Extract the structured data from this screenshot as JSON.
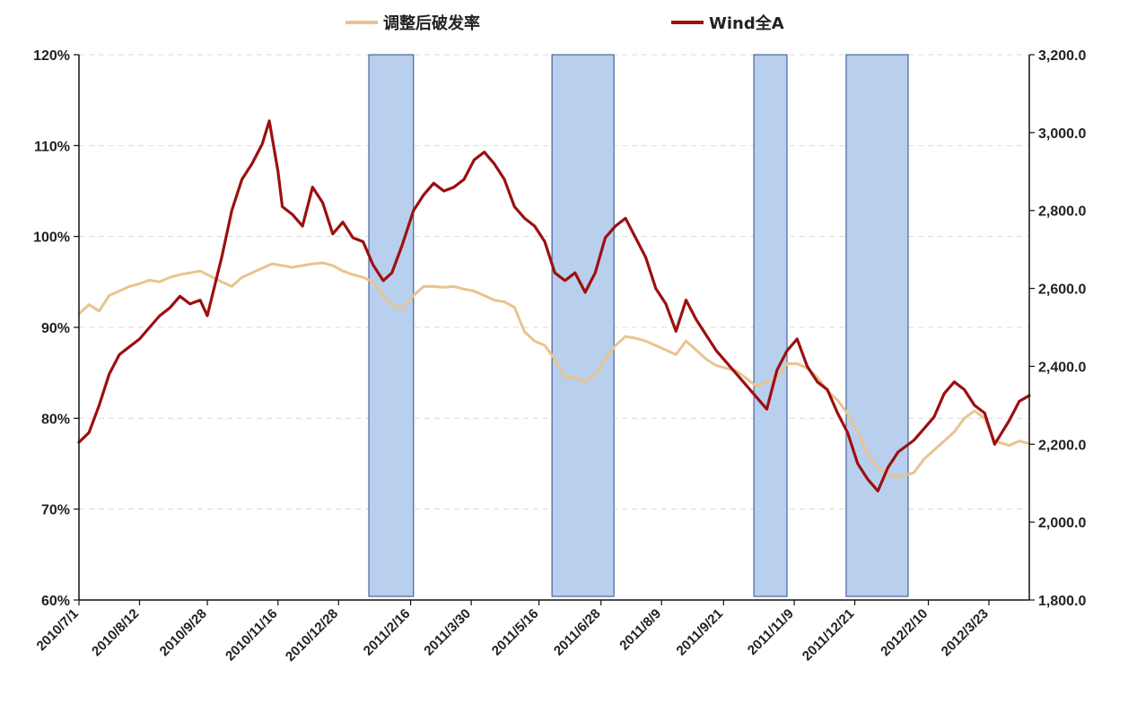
{
  "chart_data": {
    "type": "line",
    "title": "",
    "xlabel": "",
    "ylabel_left": "",
    "ylabel_right": "",
    "grid": true,
    "legend_position": "top-center",
    "x_tick_labels": [
      "2010/7/1",
      "2010/8/12",
      "2010/9/28",
      "2010/11/16",
      "2010/12/28",
      "2011/2/16",
      "2011/3/30",
      "2011/5/16",
      "2011/6/28",
      "2011/8/9",
      "2011/9/21",
      "2011/11/9",
      "2011/12/21",
      "2012/2/10",
      "2012/3/23"
    ],
    "x_domain": [
      "2010/7/1",
      "2012/4/20"
    ],
    "y_left": {
      "range": [
        0.6,
        1.2
      ],
      "ticks": [
        "60%",
        "70%",
        "80%",
        "90%",
        "100%",
        "110%",
        "120%"
      ]
    },
    "y_right": {
      "range": [
        1800,
        3200
      ],
      "ticks": [
        "1,800.0",
        "2,000.0",
        "2,200.0",
        "2,400.0",
        "2,600.0",
        "2,800.0",
        "3,000.0",
        "3,200.0"
      ]
    },
    "shaded_periods": [
      {
        "start": "2011/1/18",
        "end": "2011/2/18"
      },
      {
        "start": "2011/5/25",
        "end": "2011/7/7"
      },
      {
        "start": "2011/10/12",
        "end": "2011/11/4"
      },
      {
        "start": "2011/12/15",
        "end": "2012/1/27"
      }
    ],
    "colors": {
      "break_rate": "#E8C48E",
      "wind_a": "#9C1010",
      "shade_fill": "#B8D0EE",
      "shade_stroke": "#2E4A8A"
    },
    "series": [
      {
        "name": "调整后破发率",
        "axis": "left",
        "points": [
          [
            "2010/7/1",
            0.915
          ],
          [
            "2010/7/8",
            0.925
          ],
          [
            "2010/7/15",
            0.918
          ],
          [
            "2010/7/22",
            0.935
          ],
          [
            "2010/7/29",
            0.94
          ],
          [
            "2010/8/5",
            0.945
          ],
          [
            "2010/8/12",
            0.948
          ],
          [
            "2010/8/19",
            0.952
          ],
          [
            "2010/8/26",
            0.95
          ],
          [
            "2010/9/2",
            0.955
          ],
          [
            "2010/9/9",
            0.958
          ],
          [
            "2010/9/16",
            0.96
          ],
          [
            "2010/9/23",
            0.962
          ],
          [
            "2010/9/28",
            0.958
          ],
          [
            "2010/10/8",
            0.95
          ],
          [
            "2010/10/15",
            0.945
          ],
          [
            "2010/10/22",
            0.955
          ],
          [
            "2010/10/29",
            0.96
          ],
          [
            "2010/11/5",
            0.965
          ],
          [
            "2010/11/12",
            0.97
          ],
          [
            "2010/11/19",
            0.968
          ],
          [
            "2010/11/26",
            0.966
          ],
          [
            "2010/12/3",
            0.968
          ],
          [
            "2010/12/10",
            0.97
          ],
          [
            "2010/12/17",
            0.971
          ],
          [
            "2010/12/24",
            0.968
          ],
          [
            "2010/12/31",
            0.962
          ],
          [
            "2011/1/7",
            0.958
          ],
          [
            "2011/1/14",
            0.955
          ],
          [
            "2011/1/21",
            0.95
          ],
          [
            "2011/1/28",
            0.935
          ],
          [
            "2011/2/3",
            0.925
          ],
          [
            "2011/2/10",
            0.92
          ],
          [
            "2011/2/18",
            0.935
          ],
          [
            "2011/2/25",
            0.945
          ],
          [
            "2011/3/4",
            0.945
          ],
          [
            "2011/3/11",
            0.944
          ],
          [
            "2011/3/18",
            0.945
          ],
          [
            "2011/3/25",
            0.942
          ],
          [
            "2011/4/1",
            0.94
          ],
          [
            "2011/4/8",
            0.935
          ],
          [
            "2011/4/15",
            0.93
          ],
          [
            "2011/4/22",
            0.928
          ],
          [
            "2011/4/29",
            0.922
          ],
          [
            "2011/5/6",
            0.895
          ],
          [
            "2011/5/13",
            0.885
          ],
          [
            "2011/5/20",
            0.88
          ],
          [
            "2011/5/27",
            0.865
          ],
          [
            "2011/6/3",
            0.845
          ],
          [
            "2011/6/10",
            0.845
          ],
          [
            "2011/6/17",
            0.84
          ],
          [
            "2011/6/24",
            0.848
          ],
          [
            "2011/7/1",
            0.865
          ],
          [
            "2011/7/8",
            0.88
          ],
          [
            "2011/7/15",
            0.89
          ],
          [
            "2011/7/22",
            0.888
          ],
          [
            "2011/7/29",
            0.885
          ],
          [
            "2011/8/5",
            0.88
          ],
          [
            "2011/8/12",
            0.875
          ],
          [
            "2011/8/19",
            0.87
          ],
          [
            "2011/8/26",
            0.885
          ],
          [
            "2011/9/2",
            0.875
          ],
          [
            "2011/9/9",
            0.865
          ],
          [
            "2011/9/16",
            0.858
          ],
          [
            "2011/9/23",
            0.855
          ],
          [
            "2011/9/30",
            0.852
          ],
          [
            "2011/10/14",
            0.835
          ],
          [
            "2011/10/21",
            0.84
          ],
          [
            "2011/10/28",
            0.845
          ],
          [
            "2011/11/4",
            0.86
          ],
          [
            "2011/11/11",
            0.86
          ],
          [
            "2011/11/18",
            0.855
          ],
          [
            "2011/11/25",
            0.845
          ],
          [
            "2011/12/2",
            0.83
          ],
          [
            "2011/12/9",
            0.82
          ],
          [
            "2011/12/16",
            0.805
          ],
          [
            "2011/12/23",
            0.785
          ],
          [
            "2011/12/30",
            0.76
          ],
          [
            "2012/1/6",
            0.745
          ],
          [
            "2012/1/13",
            0.738
          ],
          [
            "2012/1/20",
            0.735
          ],
          [
            "2012/1/31",
            0.74
          ],
          [
            "2012/2/7",
            0.755
          ],
          [
            "2012/2/14",
            0.765
          ],
          [
            "2012/2/21",
            0.775
          ],
          [
            "2012/2/28",
            0.785
          ],
          [
            "2012/3/6",
            0.8
          ],
          [
            "2012/3/13",
            0.808
          ],
          [
            "2012/3/20",
            0.8
          ],
          [
            "2012/3/27",
            0.775
          ],
          [
            "2012/4/6",
            0.77
          ],
          [
            "2012/4/13",
            0.775
          ],
          [
            "2012/4/20",
            0.772
          ]
        ]
      },
      {
        "name": "Wind全A",
        "axis": "right",
        "points": [
          [
            "2010/7/1",
            2205
          ],
          [
            "2010/7/8",
            2230
          ],
          [
            "2010/7/15",
            2300
          ],
          [
            "2010/7/22",
            2380
          ],
          [
            "2010/7/29",
            2430
          ],
          [
            "2010/8/5",
            2450
          ],
          [
            "2010/8/12",
            2470
          ],
          [
            "2010/8/19",
            2500
          ],
          [
            "2010/8/26",
            2530
          ],
          [
            "2010/9/2",
            2550
          ],
          [
            "2010/9/9",
            2580
          ],
          [
            "2010/9/16",
            2560
          ],
          [
            "2010/9/23",
            2570
          ],
          [
            "2010/9/28",
            2530
          ],
          [
            "2010/10/8",
            2680
          ],
          [
            "2010/10/15",
            2800
          ],
          [
            "2010/10/22",
            2880
          ],
          [
            "2010/10/29",
            2920
          ],
          [
            "2010/11/5",
            2970
          ],
          [
            "2010/11/10",
            3030
          ],
          [
            "2010/11/16",
            2900
          ],
          [
            "2010/11/19",
            2810
          ],
          [
            "2010/11/26",
            2790
          ],
          [
            "2010/12/3",
            2760
          ],
          [
            "2010/12/10",
            2860
          ],
          [
            "2010/12/17",
            2820
          ],
          [
            "2010/12/24",
            2740
          ],
          [
            "2010/12/31",
            2770
          ],
          [
            "2011/1/7",
            2730
          ],
          [
            "2011/1/14",
            2720
          ],
          [
            "2011/1/21",
            2660
          ],
          [
            "2011/1/28",
            2620
          ],
          [
            "2011/2/3",
            2640
          ],
          [
            "2011/2/10",
            2710
          ],
          [
            "2011/2/18",
            2800
          ],
          [
            "2011/2/25",
            2840
          ],
          [
            "2011/3/4",
            2870
          ],
          [
            "2011/3/11",
            2850
          ],
          [
            "2011/3/18",
            2860
          ],
          [
            "2011/3/25",
            2880
          ],
          [
            "2011/4/1",
            2930
          ],
          [
            "2011/4/8",
            2950
          ],
          [
            "2011/4/15",
            2920
          ],
          [
            "2011/4/22",
            2880
          ],
          [
            "2011/4/29",
            2810
          ],
          [
            "2011/5/6",
            2780
          ],
          [
            "2011/5/13",
            2760
          ],
          [
            "2011/5/20",
            2720
          ],
          [
            "2011/5/27",
            2640
          ],
          [
            "2011/6/3",
            2620
          ],
          [
            "2011/6/10",
            2640
          ],
          [
            "2011/6/17",
            2590
          ],
          [
            "2011/6/24",
            2640
          ],
          [
            "2011/7/1",
            2730
          ],
          [
            "2011/7/8",
            2760
          ],
          [
            "2011/7/15",
            2780
          ],
          [
            "2011/7/22",
            2730
          ],
          [
            "2011/7/29",
            2680
          ],
          [
            "2011/8/5",
            2600
          ],
          [
            "2011/8/12",
            2560
          ],
          [
            "2011/8/19",
            2490
          ],
          [
            "2011/8/26",
            2570
          ],
          [
            "2011/9/2",
            2520
          ],
          [
            "2011/9/9",
            2480
          ],
          [
            "2011/9/16",
            2440
          ],
          [
            "2011/9/23",
            2410
          ],
          [
            "2011/9/30",
            2380
          ],
          [
            "2011/10/14",
            2320
          ],
          [
            "2011/10/21",
            2290
          ],
          [
            "2011/10/28",
            2390
          ],
          [
            "2011/11/4",
            2440
          ],
          [
            "2011/11/11",
            2470
          ],
          [
            "2011/11/18",
            2400
          ],
          [
            "2011/11/25",
            2360
          ],
          [
            "2011/12/2",
            2340
          ],
          [
            "2011/12/9",
            2280
          ],
          [
            "2011/12/16",
            2230
          ],
          [
            "2011/12/23",
            2150
          ],
          [
            "2011/12/30",
            2110
          ],
          [
            "2012/1/6",
            2080
          ],
          [
            "2012/1/13",
            2140
          ],
          [
            "2012/1/20",
            2180
          ],
          [
            "2012/1/31",
            2210
          ],
          [
            "2012/2/7",
            2240
          ],
          [
            "2012/2/14",
            2270
          ],
          [
            "2012/2/21",
            2330
          ],
          [
            "2012/2/28",
            2360
          ],
          [
            "2012/3/6",
            2340
          ],
          [
            "2012/3/13",
            2300
          ],
          [
            "2012/3/20",
            2280
          ],
          [
            "2012/3/27",
            2200
          ],
          [
            "2012/4/6",
            2260
          ],
          [
            "2012/4/13",
            2310
          ],
          [
            "2012/4/20",
            2325
          ]
        ]
      }
    ]
  }
}
